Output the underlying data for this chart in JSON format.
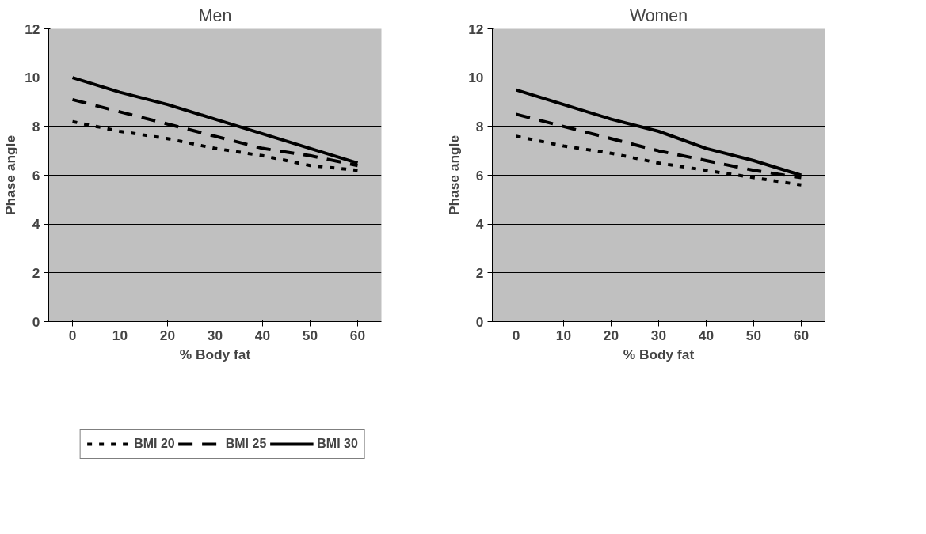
{
  "chart_data": [
    {
      "type": "line",
      "title": "Men",
      "xlabel": "% Body fat",
      "ylabel": "Phase angle",
      "categories": [
        "0",
        "10",
        "20",
        "30",
        "40",
        "50",
        "60"
      ],
      "ylim": [
        0,
        12
      ],
      "yticks": [
        0,
        2,
        4,
        6,
        8,
        10,
        12
      ],
      "grid": "y",
      "legend": "bottom",
      "series": [
        {
          "name": "BMI 20",
          "color": "#000000",
          "line_style": "dotted",
          "values": [
            8.2,
            7.8,
            7.5,
            7.1,
            6.8,
            6.4,
            6.2
          ]
        },
        {
          "name": "BMI 25",
          "color": "#000000",
          "line_style": "dashed",
          "values": [
            9.1,
            8.6,
            8.1,
            7.6,
            7.1,
            6.8,
            6.4
          ]
        },
        {
          "name": "BMI 30",
          "color": "#000000",
          "line_style": "solid",
          "values": [
            10.0,
            9.4,
            8.9,
            8.3,
            7.7,
            7.1,
            6.5
          ]
        }
      ]
    },
    {
      "type": "line",
      "title": "Women",
      "xlabel": "% Body fat",
      "ylabel": "Phase angle",
      "categories": [
        "0",
        "10",
        "20",
        "30",
        "40",
        "50",
        "60"
      ],
      "ylim": [
        0,
        12
      ],
      "yticks": [
        0,
        2,
        4,
        6,
        8,
        10,
        12
      ],
      "grid": "y",
      "series": [
        {
          "color": "#000000",
          "line_style": "dotted",
          "values": [
            7.6,
            7.2,
            6.9,
            6.5,
            6.2,
            5.9,
            5.6
          ]
        },
        {
          "color": "#000000",
          "line_style": "dashed",
          "values": [
            8.5,
            8.0,
            7.5,
            7.0,
            6.6,
            6.2,
            5.9
          ]
        },
        {
          "color": "#000000",
          "line_style": "solid",
          "values": [
            9.5,
            8.9,
            8.3,
            7.8,
            7.1,
            6.6,
            6.0
          ]
        }
      ]
    }
  ]
}
